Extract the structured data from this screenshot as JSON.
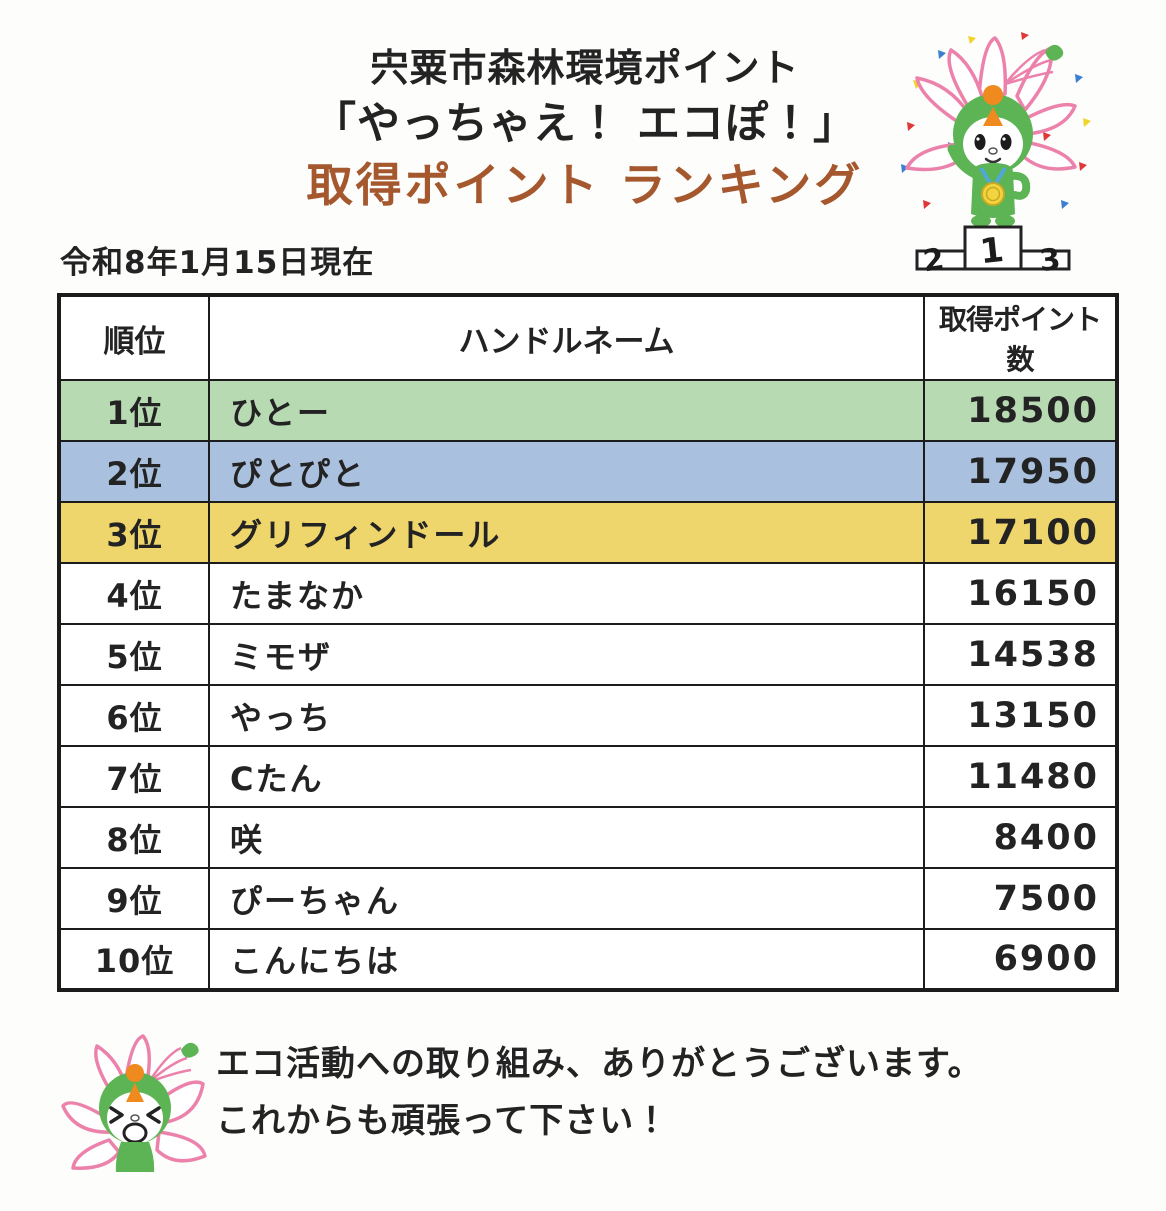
{
  "page": {
    "title_line1": "宍粟市森林環境ポイント",
    "title_line2": "「やっちゃえ！ エコぽ！」",
    "title_line3": "取得ポイント  ランキング",
    "date_note": "令和8年1月15日現在"
  },
  "table": {
    "headers": {
      "rank": "順位",
      "handle": "ハンドルネーム",
      "points": "取得ポイント数"
    },
    "rows": [
      {
        "rank": "1位",
        "handle": "ひとー",
        "points": "18500",
        "bg": "#b7dab3"
      },
      {
        "rank": "2位",
        "handle": "ぴとぴと",
        "points": "17950",
        "bg": "#a9c1de"
      },
      {
        "rank": "3位",
        "handle": "グリフィンドール",
        "points": "17100",
        "bg": "#efd66c"
      },
      {
        "rank": "4位",
        "handle": "たまなか",
        "points": "16150",
        "bg": "#ffffff"
      },
      {
        "rank": "5位",
        "handle": "ミモザ",
        "points": "14538",
        "bg": "#ffffff"
      },
      {
        "rank": "6位",
        "handle": "やっち",
        "points": "13150",
        "bg": "#ffffff"
      },
      {
        "rank": "7位",
        "handle": "Cたん",
        "points": "11480",
        "bg": "#ffffff"
      },
      {
        "rank": "8位",
        "handle": "咲",
        "points": "8400",
        "bg": "#ffffff"
      },
      {
        "rank": "9位",
        "handle": "ぴーちゃん",
        "points": "7500",
        "bg": "#ffffff"
      },
      {
        "rank": "10位",
        "handle": "こんにちは",
        "points": "6900",
        "bg": "#ffffff"
      }
    ]
  },
  "mascot_top": {
    "podium": {
      "first": "1",
      "second": "2",
      "third": "3"
    }
  },
  "footer": {
    "message_line1": "エコ活動への取り組み、ありがとうございます。",
    "message_line2": "これからも頑張って下さい！"
  },
  "colors": {
    "title_accent": "#a5572d",
    "text": "#232323",
    "table_border": "#1c1c1c",
    "rank1_bg": "#b7dab3",
    "rank2_bg": "#a9c1de",
    "rank3_bg": "#efd66c",
    "mascot_pink": "#ec82ab",
    "mascot_green": "#5cb454",
    "mascot_orange": "#ee8a1e",
    "medal_yellow": "#f2d440",
    "ribbon_blue": "#4fa8d8"
  }
}
